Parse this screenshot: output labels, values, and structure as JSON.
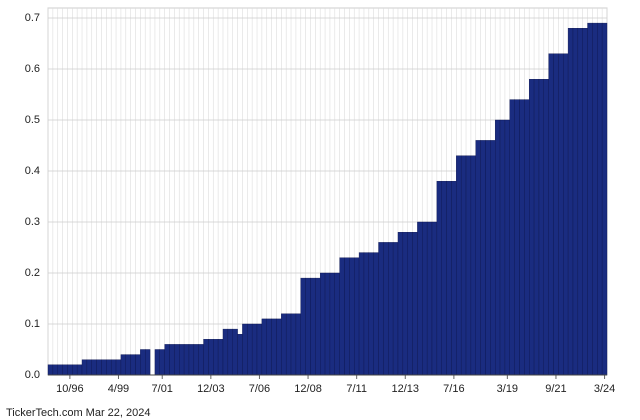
{
  "chart_data": {
    "type": "bar",
    "categories": [
      null,
      null,
      null,
      null,
      "10/96",
      null,
      null,
      null,
      null,
      null,
      null,
      null,
      null,
      null,
      "4/99",
      null,
      null,
      null,
      null,
      null,
      null,
      null,
      null,
      "7/01",
      null,
      null,
      null,
      null,
      null,
      null,
      null,
      null,
      null,
      "12/03",
      null,
      null,
      null,
      null,
      null,
      null,
      null,
      null,
      null,
      "7/06",
      null,
      null,
      null,
      null,
      null,
      null,
      null,
      null,
      null,
      "12/08",
      null,
      null,
      null,
      null,
      null,
      null,
      null,
      null,
      null,
      "7/11",
      null,
      null,
      null,
      null,
      null,
      null,
      null,
      null,
      null,
      "12/13",
      null,
      null,
      null,
      null,
      null,
      null,
      null,
      null,
      null,
      "7/16",
      null,
      null,
      null,
      null,
      null,
      null,
      null,
      null,
      null,
      null,
      "3/19",
      null,
      null,
      null,
      null,
      null,
      null,
      null,
      null,
      null,
      "9/21",
      null,
      null,
      null,
      null,
      null,
      null,
      null,
      null,
      null,
      "3/24"
    ],
    "values": [
      0.02,
      0.02,
      0.02,
      0.02,
      0.02,
      0.02,
      0.02,
      0.03,
      0.03,
      0.03,
      0.03,
      0.03,
      0.03,
      0.03,
      0.03,
      0.04,
      0.04,
      0.04,
      0.04,
      0.05,
      0.05,
      0,
      0.05,
      0.05,
      0.06,
      0.06,
      0.06,
      0.06,
      0.06,
      0.06,
      0.06,
      0.06,
      0.07,
      0.07,
      0.07,
      0.07,
      0.09,
      0.09,
      0.09,
      0.08,
      0.1,
      0.1,
      0.1,
      0.1,
      0.11,
      0.11,
      0.11,
      0.11,
      0.12,
      0.12,
      0.12,
      0.12,
      0.19,
      0.19,
      0.19,
      0.19,
      0.2,
      0.2,
      0.2,
      0.2,
      0.23,
      0.23,
      0.23,
      0.23,
      0.24,
      0.24,
      0.24,
      0.24,
      0.26,
      0.26,
      0.26,
      0.26,
      0.28,
      0.28,
      0.28,
      0.28,
      0.3,
      0.3,
      0.3,
      0.3,
      0.38,
      0.38,
      0.38,
      0.38,
      0.43,
      0.43,
      0.43,
      0.43,
      0.46,
      0.46,
      0.46,
      0.46,
      0.5,
      0.5,
      0.5,
      0.54,
      0.54,
      0.54,
      0.54,
      0.58,
      0.58,
      0.58,
      0.58,
      0.63,
      0.63,
      0.63,
      0.63,
      0.68,
      0.68,
      0.68,
      0.68,
      0.69,
      0.69,
      0.69,
      0.69
    ],
    "color": "#1a2c80",
    "ylim": [
      0,
      0.7
    ],
    "yticks": [
      {
        "value": 0,
        "label": "0.0"
      },
      0.1,
      0.2,
      0.3,
      0.4,
      0.5,
      0.6,
      0.7
    ],
    "grid": true,
    "footer": "TickerTech.com  Mar 22, 2024"
  }
}
